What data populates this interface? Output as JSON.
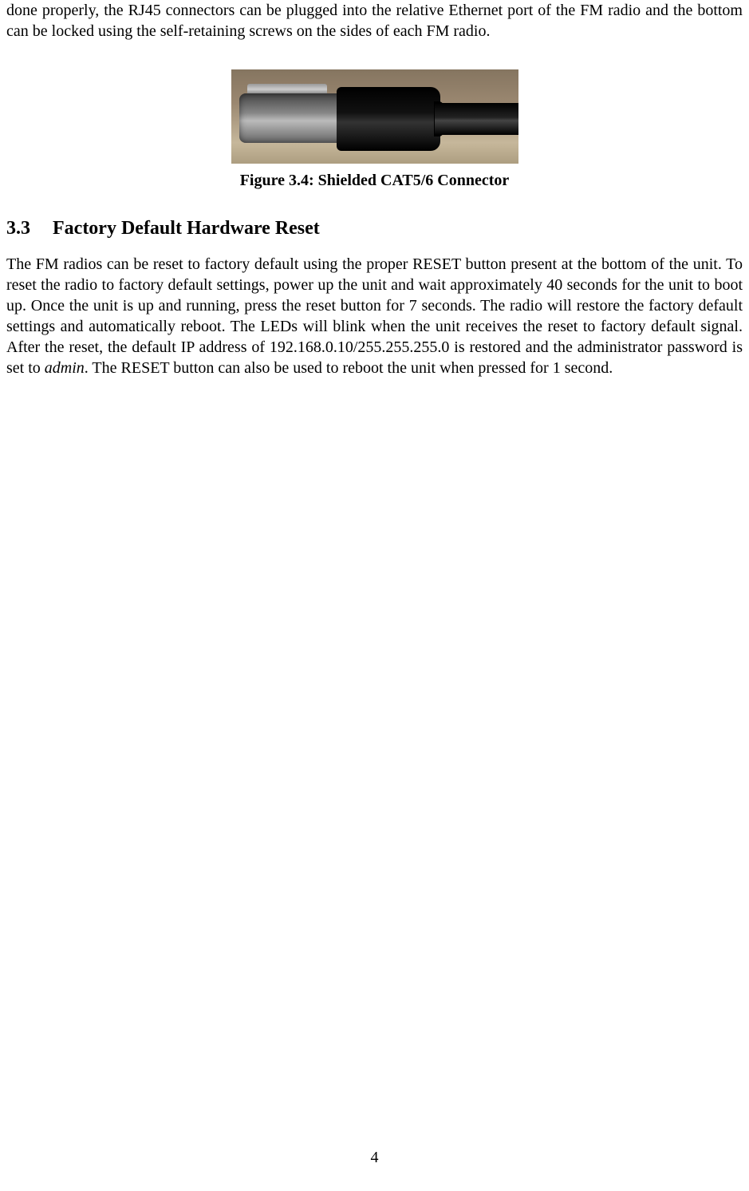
{
  "intro": {
    "text": "done properly, the RJ45 connectors can be plugged into the relative Ethernet port of the FM radio and the bottom can be locked using the self-retaining screws on the sides of each FM radio."
  },
  "figure": {
    "caption": "Figure  3.4: Shielded CAT5/6 Connector",
    "alt": "Shielded CAT5/6 Connector photo",
    "background_gradient_top": "#857560",
    "background_gradient_bottom": "#ad9e80",
    "connector_metal": "#888888",
    "connector_boot": "#000000",
    "cable_color": "#111111"
  },
  "section": {
    "number": "3.3",
    "title": "Factory Default Hardware Reset",
    "body_1": "The FM radios can be reset to factory default using the proper RESET button present at the bottom of the unit. To reset the radio to factory default settings, power up the unit and wait approximately 40 seconds for the unit to boot up.  Once the unit is up and running,  press  the  reset  button  for 7 seconds. The radio  will  restore the  factory  default  settings  and  automatically reboot.   The  LEDs will  blink when  the  unit receives  the  reset  to  factory default  signal.   After  the  reset, the  default  IP address  of 192.168.0.10/255.255.255.0  is  restored  and  the administrator  password is set to ",
    "body_italic": "admin",
    "body_2": ". The RESET button can also be used to reboot the unit when pressed for 1 second."
  },
  "page_number": "4",
  "colors": {
    "text": "#000000",
    "background": "#ffffff"
  },
  "typography": {
    "body_fontsize": 20,
    "heading_fontsize": 24,
    "caption_fontsize": 20,
    "font_family": "Times New Roman"
  }
}
